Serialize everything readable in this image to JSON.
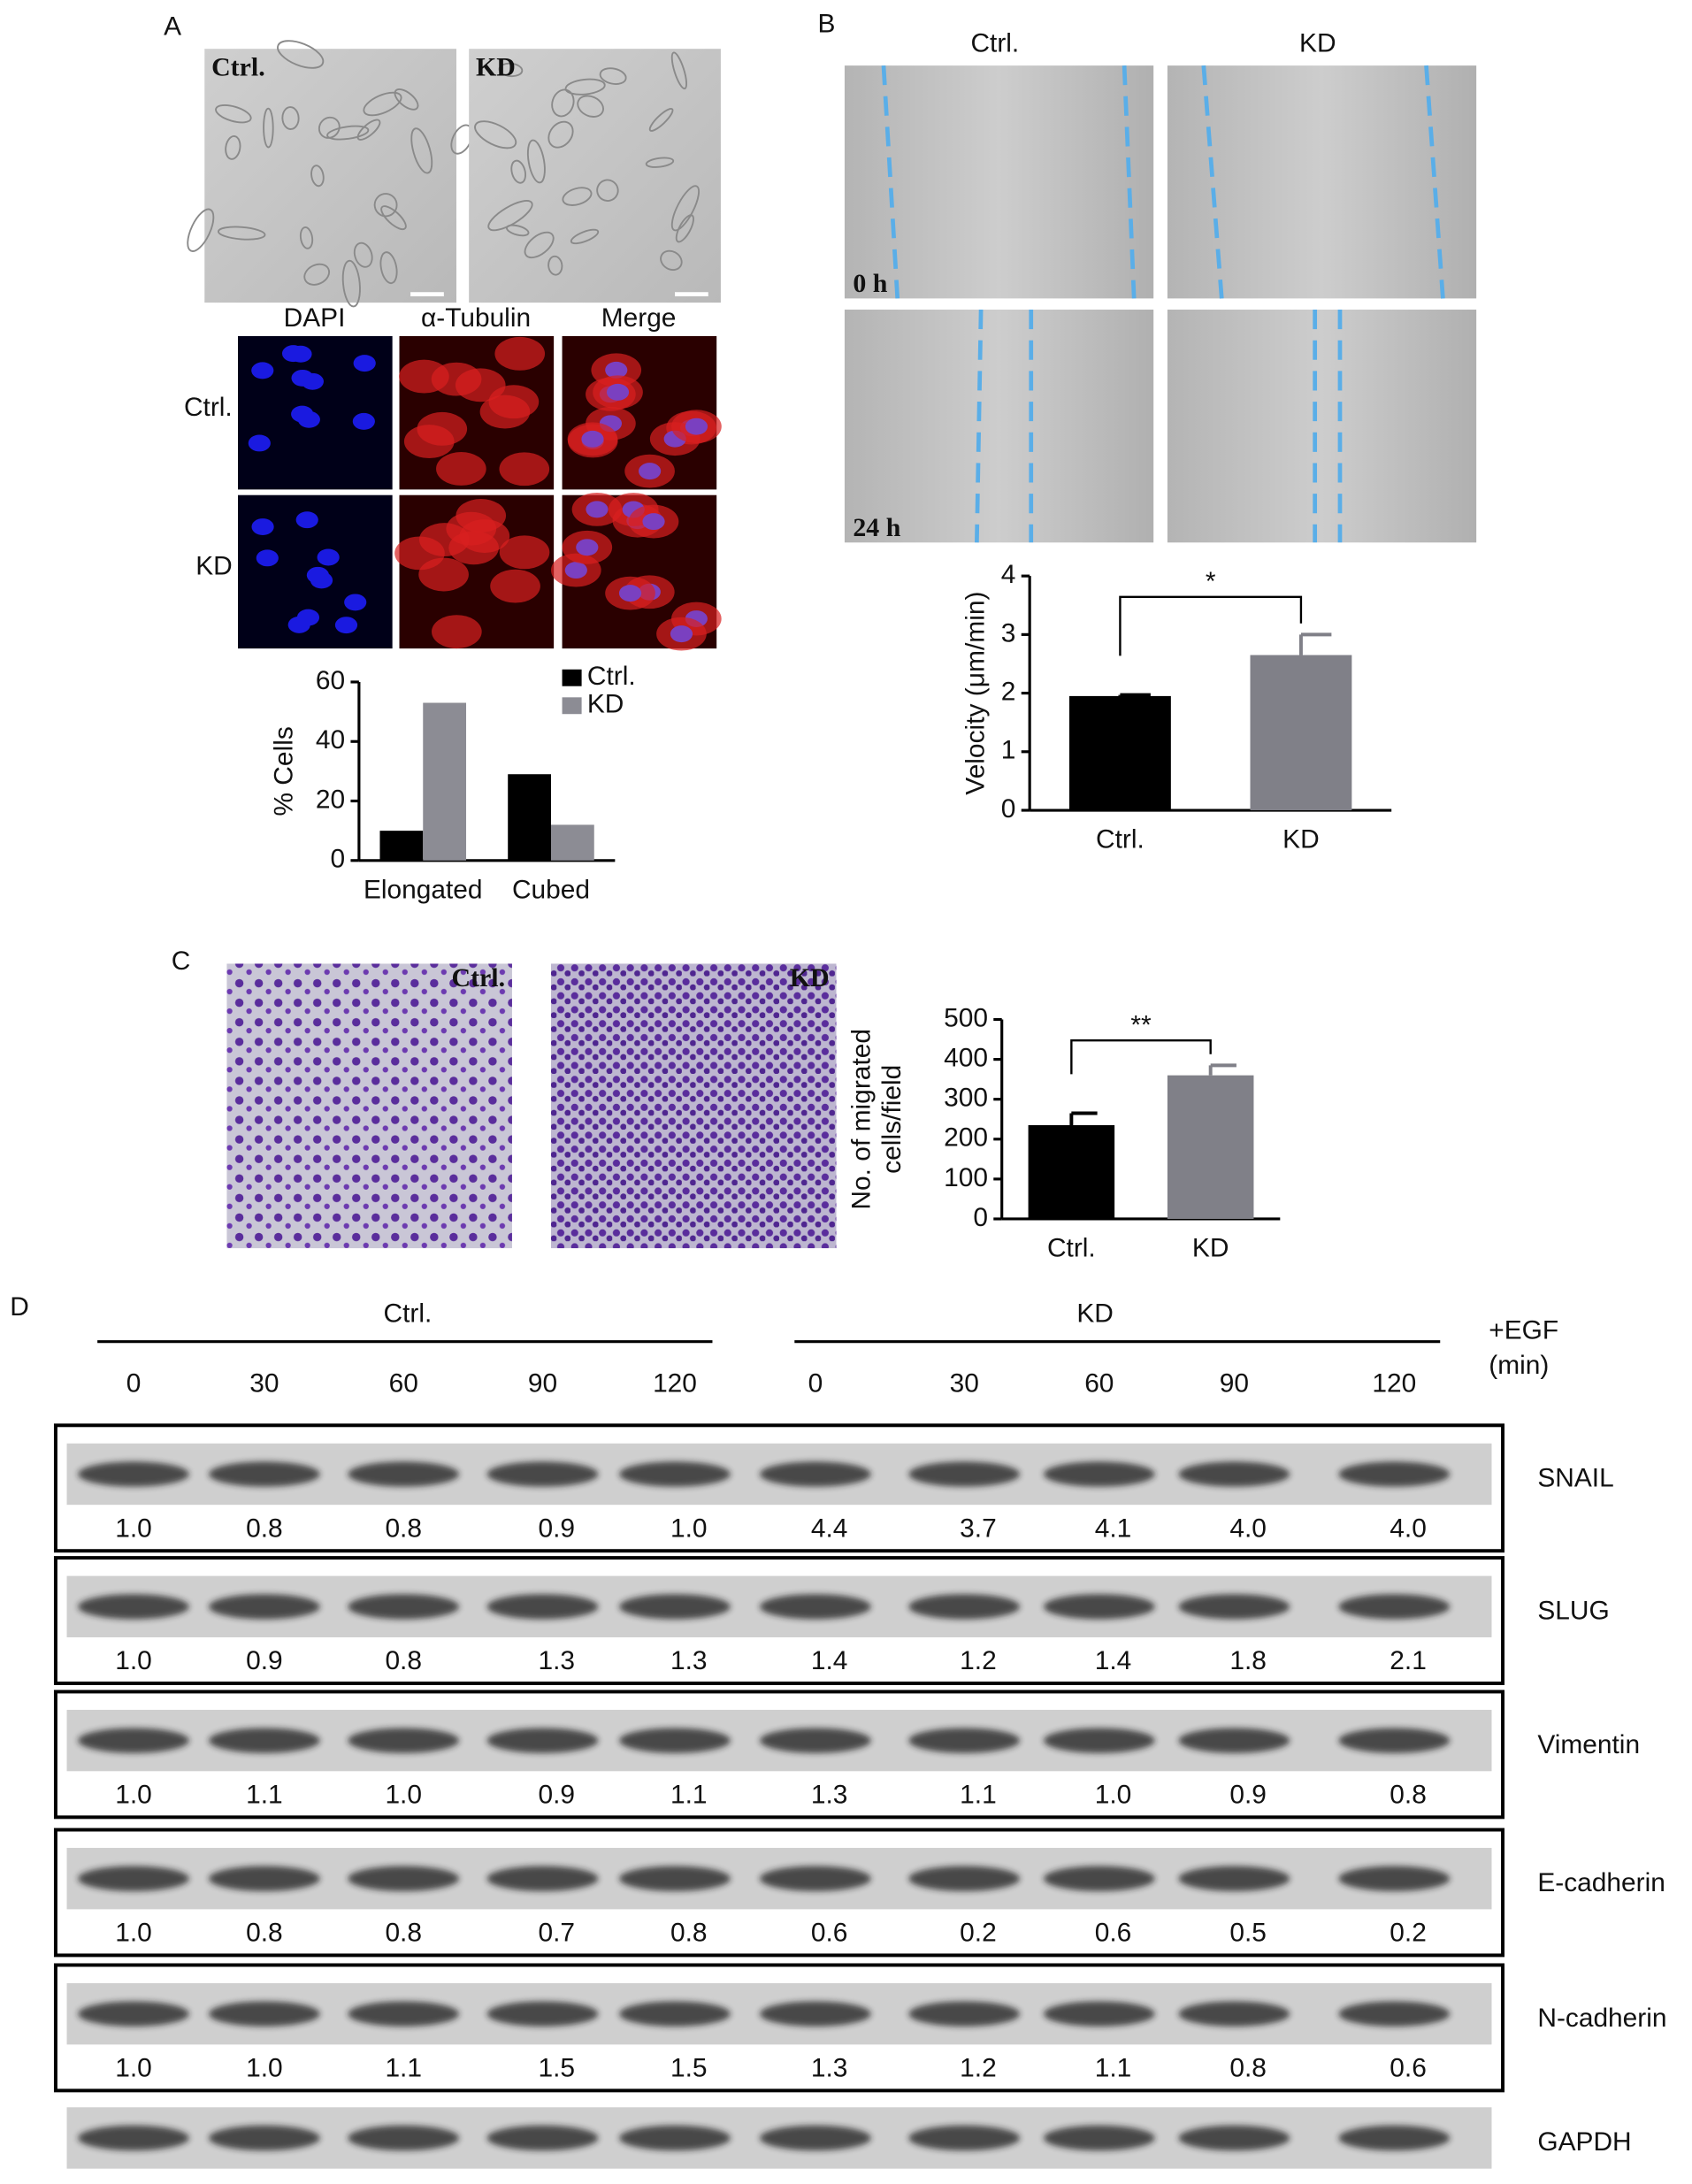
{
  "panels": [
    "A",
    "B",
    "C",
    "D"
  ],
  "panel_a": {
    "image_labels": [
      "Ctrl.",
      "KD"
    ],
    "channels": [
      "DAPI",
      "α-Tubulin",
      "Merge"
    ],
    "rows": [
      "Ctrl.",
      "KD"
    ]
  },
  "panel_b": {
    "columns": [
      "Ctrl.",
      "KD"
    ],
    "times": [
      "0 h",
      "24 h"
    ]
  },
  "panel_c": {
    "image_labels": [
      "Ctrl.",
      "KD"
    ]
  },
  "chart_data": [
    {
      "type": "bar",
      "ylabel": "% Cells",
      "categories": [
        "Elongated",
        "Cubed"
      ],
      "series": [
        {
          "name": "Ctrl.",
          "color": "#000000",
          "values": [
            10,
            29
          ]
        },
        {
          "name": "KD",
          "color": "#8c8c94",
          "values": [
            53,
            12
          ]
        }
      ],
      "ylim": [
        0,
        60
      ],
      "yticks": [
        0,
        20,
        40,
        60
      ],
      "legend": "top-right"
    },
    {
      "type": "bar",
      "ylabel": "Velocity (μm/min)",
      "categories": [
        "Ctrl.",
        "KD"
      ],
      "values": [
        1.95,
        2.65
      ],
      "errors": [
        0.02,
        0.35
      ],
      "colors": [
        "#000000",
        "#808088"
      ],
      "ylim": [
        0,
        4
      ],
      "yticks": [
        0,
        1,
        2,
        3,
        4
      ],
      "annotation": "*"
    },
    {
      "type": "bar",
      "ylabel": [
        "No. of migrated",
        "cells/field"
      ],
      "categories": [
        "Ctrl.",
        "KD"
      ],
      "values": [
        235,
        360
      ],
      "errors": [
        30,
        25
      ],
      "colors": [
        "#000000",
        "#808088"
      ],
      "ylim": [
        0,
        500
      ],
      "yticks": [
        0,
        100,
        200,
        300,
        400,
        500
      ],
      "annotation": "**"
    }
  ],
  "panel_d": {
    "groups": [
      "Ctrl.",
      "KD"
    ],
    "treatment": "+EGF",
    "unit": "(min)",
    "times": [
      0,
      30,
      60,
      90,
      120,
      0,
      30,
      60,
      90,
      120
    ],
    "blots": [
      {
        "name": "SNAIL",
        "values": [
          "1.0",
          "0.8",
          "0.8",
          "0.9",
          "1.0",
          "4.4",
          "3.7",
          "4.1",
          "4.0",
          "4.0"
        ]
      },
      {
        "name": "SLUG",
        "values": [
          "1.0",
          "0.9",
          "0.8",
          "1.3",
          "1.3",
          "1.4",
          "1.2",
          "1.4",
          "1.8",
          "2.1"
        ]
      },
      {
        "name": "Vimentin",
        "values": [
          "1.0",
          "1.1",
          "1.0",
          "0.9",
          "1.1",
          "1.3",
          "1.1",
          "1.0",
          "0.9",
          "0.8"
        ]
      },
      {
        "name": "E-cadherin",
        "values": [
          "1.0",
          "0.8",
          "0.8",
          "0.7",
          "0.8",
          "0.6",
          "0.2",
          "0.6",
          "0.5",
          "0.2"
        ]
      },
      {
        "name": "N-cadherin",
        "values": [
          "1.0",
          "1.0",
          "1.1",
          "1.5",
          "1.5",
          "1.3",
          "1.2",
          "1.1",
          "0.8",
          "0.6"
        ]
      },
      {
        "name": "GAPDH"
      }
    ]
  }
}
